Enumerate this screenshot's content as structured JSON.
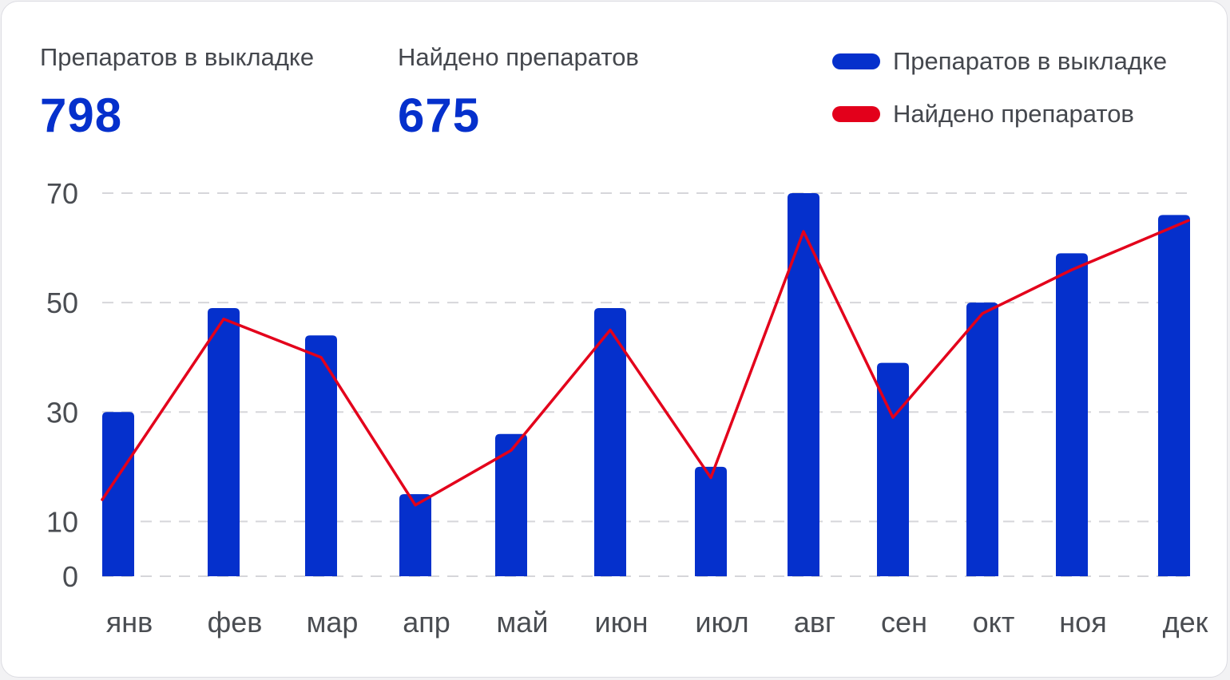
{
  "stats": [
    {
      "label": "Препаратов в выкладке",
      "value": "798"
    },
    {
      "label": "Найдено препаратов",
      "value": "675"
    }
  ],
  "legend": [
    {
      "label": "Препаратов в выкладке",
      "color": "#0530cc"
    },
    {
      "label": "Найдено препаратов",
      "color": "#e3001b"
    }
  ],
  "chart_data": {
    "type": "bar",
    "categories": [
      "янв",
      "фев",
      "мар",
      "апр",
      "май",
      "июн",
      "июл",
      "авг",
      "сен",
      "окт",
      "ноя",
      "дек"
    ],
    "y_ticks": [
      "0",
      "10",
      "30",
      "50",
      "70"
    ],
    "series": [
      {
        "name": "Препаратов в выкладке",
        "type": "bar",
        "color": "#0530cc",
        "values": [
          30,
          49,
          44,
          15,
          26,
          49,
          20,
          70,
          39,
          50,
          59,
          66
        ]
      },
      {
        "name": "Найдено препаратов",
        "type": "line",
        "color": "#e3001b",
        "values": [
          14,
          47,
          40,
          13,
          23,
          45,
          18,
          63,
          29,
          48,
          56,
          65
        ]
      }
    ],
    "grid": true,
    "legend_position": "top-right"
  }
}
